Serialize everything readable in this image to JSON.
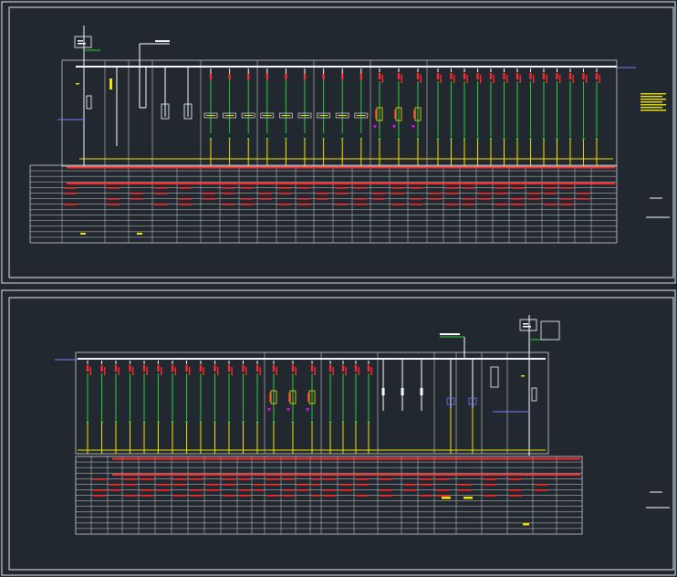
{
  "drawing": {
    "colors": {
      "background": "#212830",
      "frame": "#e8e8e8",
      "table": "#d0d0d0",
      "busbar": "#f2f2f2",
      "breaker": "#ff2a2a",
      "feeder_upper": "#2ecc40",
      "feeder_lower": "#f2e600",
      "transformer": "#ff00ff",
      "ct": "#f2e600",
      "cable": "#7a7aff"
    },
    "sheets": [
      {
        "id": "sheet-1",
        "groups": [
          {
            "type": "incomer",
            "count": 1
          },
          {
            "type": "pt",
            "count": 1
          },
          {
            "type": "coupler",
            "count": 1
          },
          {
            "type": "feeder-breaker",
            "count": 2
          },
          {
            "type": "feeder",
            "count": 13
          },
          {
            "type": "capacitor",
            "count": 3
          },
          {
            "type": "feeder",
            "count": 14
          }
        ]
      },
      {
        "id": "sheet-2",
        "groups": [
          {
            "type": "feeder",
            "count": 13
          },
          {
            "type": "capacitor",
            "count": 3
          },
          {
            "type": "feeder",
            "count": 7
          },
          {
            "type": "switch",
            "count": 3
          },
          {
            "type": "pt",
            "count": 2
          },
          {
            "type": "coupler",
            "count": 1
          },
          {
            "type": "incomer",
            "count": 1
          }
        ]
      }
    ],
    "table_rows": 14
  }
}
